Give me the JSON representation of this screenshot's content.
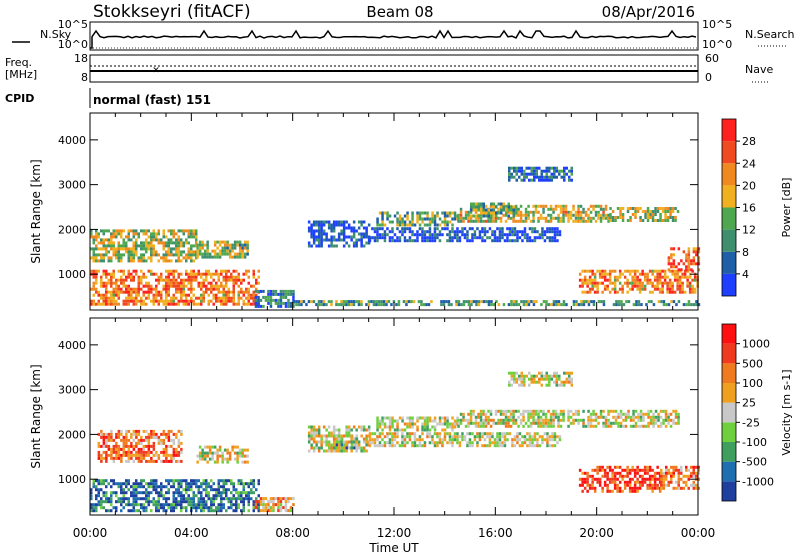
{
  "header": {
    "station": "Stokkseyri (fitACF)",
    "beam": "Beam 08",
    "date": "08/Apr/2016"
  },
  "aux_panels": {
    "nsky_label": "N.Sky",
    "nsky_ticks": [
      "10^5",
      "10^0"
    ],
    "nsearch_label": "N.Search",
    "nsearch_ticks": [
      "10^5",
      "10^0"
    ],
    "freq_label": "Freq.",
    "freq_unit": "[MHz]",
    "freq_ticks": [
      "18",
      "8"
    ],
    "nave_label": "Nave",
    "nave_ticks": [
      "60",
      "0"
    ],
    "cpid_label": "CPID",
    "cpid_value": "normal (fast) 151"
  },
  "colors": {
    "power": [
      "#1f3fff",
      "#1f5fa8",
      "#3f8f6f",
      "#4fa84f",
      "#f0b020",
      "#f08a20",
      "#f04a20",
      "#ff2020"
    ],
    "velocity": [
      "#1f3f9f",
      "#1f6fb0",
      "#3f9f5f",
      "#6fcf3f",
      "#c8c8c8",
      "#f0a020",
      "#f07a20",
      "#f03a20",
      "#ff1010"
    ]
  },
  "chart_data": [
    {
      "type": "heatmap",
      "title": "Power",
      "ylabel": "Slant Range [km]",
      "xlabel": "Time UT",
      "xlim": [
        "00:00",
        "24:00"
      ],
      "x_ticks": [
        "00:00",
        "04:00",
        "08:00",
        "12:00",
        "16:00",
        "20:00",
        "00:00"
      ],
      "ylim": [
        200,
        4600
      ],
      "y_ticks": [
        1000,
        2000,
        3000,
        4000
      ],
      "colorbar": {
        "label": "Power [dB]",
        "range": [
          0,
          32
        ],
        "ticks": [
          "4",
          "8",
          "12",
          "16",
          "20",
          "24",
          "28"
        ]
      },
      "regions": [
        {
          "t0": 0.0,
          "t1": 6.7,
          "r0": 300,
          "r1": 1100,
          "level": 0.72
        },
        {
          "t0": 0.0,
          "t1": 4.2,
          "r0": 1300,
          "r1": 2000,
          "level": 0.5
        },
        {
          "t0": 4.2,
          "t1": 6.2,
          "r0": 1400,
          "r1": 1750,
          "level": 0.45
        },
        {
          "t0": 6.5,
          "t1": 8.0,
          "r0": 300,
          "r1": 650,
          "level": 0.25
        },
        {
          "t0": 8.6,
          "t1": 11.0,
          "r0": 1600,
          "r1": 2200,
          "level": 0.15
        },
        {
          "t0": 11.0,
          "t1": 18.5,
          "r0": 1750,
          "r1": 2050,
          "level": 0.12
        },
        {
          "t0": 11.3,
          "t1": 14.5,
          "r0": 2100,
          "r1": 2400,
          "level": 0.4
        },
        {
          "t0": 14.5,
          "t1": 20.5,
          "r0": 2150,
          "r1": 2550,
          "level": 0.55
        },
        {
          "t0": 15.0,
          "t1": 16.8,
          "r0": 2300,
          "r1": 2600,
          "level": 0.4
        },
        {
          "t0": 16.5,
          "t1": 19.0,
          "r0": 3100,
          "r1": 3400,
          "level": 0.2
        },
        {
          "t0": 20.5,
          "t1": 23.2,
          "r0": 2200,
          "r1": 2500,
          "level": 0.5
        },
        {
          "t0": 19.3,
          "t1": 24.0,
          "r0": 600,
          "r1": 1100,
          "level": 0.7
        },
        {
          "t0": 22.8,
          "t1": 24.0,
          "r0": 1100,
          "r1": 1600,
          "level": 0.8
        },
        {
          "t0": 8.0,
          "t1": 24.0,
          "r0": 300,
          "r1": 420,
          "level": 0.35
        }
      ]
    },
    {
      "type": "heatmap",
      "title": "Velocity",
      "ylabel": "Slant Range [km]",
      "xlabel": "Time UT",
      "xlim": [
        "00:00",
        "24:00"
      ],
      "x_ticks": [
        "00:00",
        "04:00",
        "08:00",
        "12:00",
        "16:00",
        "20:00",
        "00:00"
      ],
      "ylim": [
        200,
        4600
      ],
      "y_ticks": [
        1000,
        2000,
        3000,
        4000
      ],
      "colorbar": {
        "label": "Velocity [m s-1]",
        "ticks": [
          "1000",
          "500",
          "100",
          "25",
          "-25",
          "-100",
          "-500",
          "-1000"
        ]
      },
      "regions": [
        {
          "t0": 0.0,
          "t1": 6.7,
          "r0": 300,
          "r1": 1000,
          "level": 0.15
        },
        {
          "t0": 0.3,
          "t1": 3.6,
          "r0": 1400,
          "r1": 2100,
          "level": 0.72
        },
        {
          "t0": 4.2,
          "t1": 6.2,
          "r0": 1400,
          "r1": 1750,
          "level": 0.5
        },
        {
          "t0": 6.5,
          "t1": 8.0,
          "r0": 300,
          "r1": 600,
          "level": 0.65
        },
        {
          "t0": 9.6,
          "t1": 10.5,
          "r0": 1700,
          "r1": 2000,
          "level": 0.25
        },
        {
          "t0": 8.6,
          "t1": 11.0,
          "r0": 1600,
          "r1": 2200,
          "level": 0.5
        },
        {
          "t0": 11.0,
          "t1": 18.5,
          "r0": 1750,
          "r1": 2050,
          "level": 0.5
        },
        {
          "t0": 11.3,
          "t1": 14.5,
          "r0": 2100,
          "r1": 2400,
          "level": 0.5
        },
        {
          "t0": 14.5,
          "t1": 23.2,
          "r0": 2150,
          "r1": 2550,
          "level": 0.5
        },
        {
          "t0": 16.5,
          "t1": 19.0,
          "r0": 3100,
          "r1": 3400,
          "level": 0.5
        },
        {
          "t0": 19.3,
          "t1": 22.5,
          "r0": 700,
          "r1": 1300,
          "level": 0.85
        },
        {
          "t0": 22.5,
          "t1": 24.0,
          "r0": 800,
          "r1": 1300,
          "level": 0.7
        }
      ]
    }
  ]
}
